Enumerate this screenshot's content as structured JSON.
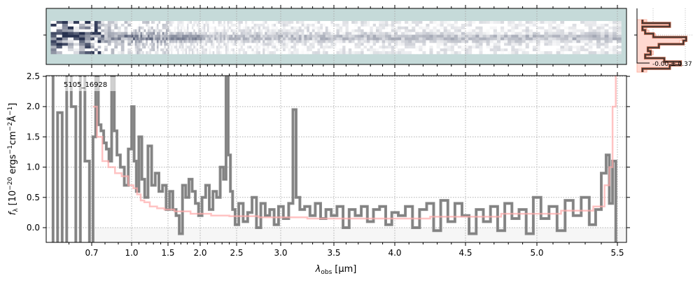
{
  "chart_data": [
    {
      "type": "heatmap",
      "panel": "2d-spectrum",
      "colormap": "bone_r-like (white to dark navy) on teal-grey background",
      "background_color": "#c5dad9"
    },
    {
      "type": "line",
      "panel": "cross-dispersion-profile",
      "annotation": "-0.00 ± 0.37",
      "colors": {
        "data": "#333333",
        "data_edge": "#b0573c",
        "model": "#ffd0c8"
      }
    },
    {
      "type": "line",
      "panel": "1d-spectrum",
      "label": "5105_16928",
      "xlabel_main": "λ",
      "xlabel_sub": "obs",
      "xlabel_unit": "[μm]",
      "ylabel_main": "f",
      "ylabel_sub": "λ",
      "ylabel_unit_pre": "[10",
      "ylabel_exp1": "−20",
      "ylabel_mid1": " ergs",
      "ylabel_exp2": "−1",
      "ylabel_mid2": "cm",
      "ylabel_exp3": "−2",
      "ylabel_mid3": "Å",
      "ylabel_exp4": "−1",
      "ylabel_end": "]",
      "xlim": [
        0.5,
        5.55
      ],
      "ylim": [
        -0.25,
        2.5
      ],
      "xticks": [
        0.7,
        1.0,
        1.5,
        2.0,
        2.5,
        3.0,
        3.5,
        4.0,
        4.5,
        5.0,
        5.5
      ],
      "xtick_labels": [
        "0.7",
        "1.0",
        "1.5",
        "2.0",
        "2.5",
        "3.0",
        "3.5",
        "4.0",
        "4.5",
        "5.0",
        "5.5"
      ],
      "yticks": [
        0.0,
        0.5,
        1.0,
        1.5,
        2.0,
        2.5
      ],
      "ytick_labels": [
        "0.0",
        "0.5",
        "1.0",
        "1.5",
        "2.0",
        "2.5"
      ],
      "grid": true,
      "colors": {
        "data": "#808080",
        "model": "#ffb3b3"
      },
      "series": [
        {
          "role": "data",
          "x": [
            0.52,
            0.54,
            0.56,
            0.58,
            0.6,
            0.62,
            0.64,
            0.66,
            0.68,
            0.7,
            0.72,
            0.74,
            0.76,
            0.78,
            0.8,
            0.82,
            0.84,
            0.86,
            0.88,
            0.9,
            0.93,
            0.96,
            0.99,
            1.02,
            1.05,
            1.08,
            1.12,
            1.16,
            1.2,
            1.25,
            1.3,
            1.35,
            1.4,
            1.45,
            1.5,
            1.55,
            1.6,
            1.65,
            1.7,
            1.75,
            1.8,
            1.85,
            1.9,
            1.95,
            2.0,
            2.05,
            2.1,
            2.15,
            2.2,
            2.25,
            2.3,
            2.34,
            2.37,
            2.4,
            2.43,
            2.46,
            2.5,
            2.55,
            2.6,
            2.65,
            2.7,
            2.75,
            2.8,
            2.85,
            2.9,
            2.95,
            3.0,
            3.05,
            3.1,
            3.13,
            3.16,
            3.2,
            3.25,
            3.3,
            3.35,
            3.4,
            3.45,
            3.5,
            3.55,
            3.6,
            3.65,
            3.7,
            3.75,
            3.8,
            3.85,
            3.9,
            3.95,
            4.0,
            4.05,
            4.1,
            4.15,
            4.2,
            4.25,
            4.3,
            4.35,
            4.4,
            4.45,
            4.5,
            4.55,
            4.6,
            4.65,
            4.7,
            4.75,
            4.8,
            4.85,
            4.9,
            4.95,
            5.0,
            5.05,
            5.1,
            5.15,
            5.2,
            5.25,
            5.3,
            5.35,
            5.38,
            5.42,
            5.44,
            5.46,
            5.48,
            5.5
          ],
          "y": [
            3.0,
            -1.0,
            1.9,
            -1.0,
            2.6,
            2.0,
            -1.0,
            3.0,
            1.1,
            -0.5,
            1.5,
            2.5,
            1.7,
            1.6,
            1.4,
            1.3,
            1.1,
            2.5,
            1.6,
            1.2,
            1.0,
            0.7,
            1.3,
            2.0,
            1.1,
            0.6,
            1.5,
            0.8,
            0.5,
            1.35,
            0.7,
            0.9,
            0.6,
            0.7,
            0.3,
            0.6,
            0.3,
            0.2,
            -0.1,
            0.7,
            0.5,
            0.8,
            0.6,
            0.4,
            0.2,
            0.5,
            0.7,
            0.3,
            0.6,
            0.5,
            1.0,
            0.8,
            2.6,
            1.2,
            0.6,
            0.3,
            0.05,
            0.4,
            0.1,
            0.25,
            0.5,
            0.0,
            0.4,
            0.2,
            0.3,
            0.05,
            0.35,
            0.15,
            0.4,
            1.95,
            0.5,
            0.3,
            0.35,
            0.2,
            0.4,
            0.15,
            0.3,
            0.2,
            0.35,
            0.0,
            0.3,
            0.2,
            0.35,
            0.1,
            0.3,
            0.35,
            0.05,
            0.25,
            0.2,
            0.35,
            0.0,
            0.3,
            0.4,
            -0.05,
            0.45,
            0.1,
            0.4,
            0.2,
            -0.1,
            0.3,
            0.1,
            0.35,
            -0.05,
            0.4,
            0.15,
            0.3,
            -0.1,
            0.5,
            0.15,
            0.35,
            -0.05,
            0.45,
            0.2,
            0.5,
            0.05,
            0.3,
            0.9,
            1.2,
            0.4,
            1.1,
            -0.3
          ]
        },
        {
          "role": "model",
          "x": [
            0.72,
            0.76,
            0.8,
            0.85,
            0.9,
            0.95,
            1.0,
            1.05,
            1.1,
            1.15,
            1.2,
            1.3,
            1.4,
            1.5,
            1.7,
            2.0,
            2.3,
            2.5,
            3.0,
            3.5,
            4.0,
            4.5,
            5.0,
            5.3,
            5.4,
            5.44,
            5.46,
            5.48,
            5.5
          ],
          "y": [
            2.0,
            1.5,
            1.1,
            1.0,
            0.9,
            0.85,
            0.7,
            0.65,
            0.55,
            0.45,
            0.42,
            0.35,
            0.32,
            0.3,
            0.27,
            0.23,
            0.2,
            0.19,
            0.17,
            0.15,
            0.15,
            0.18,
            0.23,
            0.28,
            0.35,
            0.7,
            1.0,
            2.0,
            2.6
          ]
        }
      ]
    }
  ]
}
